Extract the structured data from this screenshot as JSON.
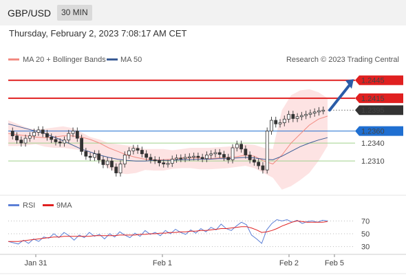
{
  "header": {
    "symbol": "GBP/USD",
    "timeframe": "30 MIN",
    "datetime": "Thursday, February 2, 2023 7:08:17 AM CET"
  },
  "legend": {
    "bb": "MA 20 + Bollinger Bands",
    "ma50": "MA 50",
    "credit": "Research © 2023 Trading Central"
  },
  "colors": {
    "bb": "#f28b82",
    "ma50": "#3a5b95",
    "resistance": "#e02020",
    "pivot": "#1f6fd1",
    "support": "#5a9e3a",
    "current": "#333333",
    "arrow": "#2a5ca8",
    "rsi": "#5b7fd6",
    "rsi_ma": "#e02020"
  },
  "chart_data": [
    {
      "type": "candlestick",
      "series": [
        {
          "name": "MA 20 + Bollinger Bands"
        },
        {
          "name": "MA 50"
        }
      ],
      "x_ticks": [
        "Jan 31",
        "Feb 1",
        "Feb 2",
        "Feb 5"
      ],
      "ylim": [
        1.2255,
        1.247
      ],
      "levels": [
        {
          "value": 1.2445,
          "label": "1.2445",
          "kind": "resistance"
        },
        {
          "value": 1.2415,
          "label": "1.2415",
          "kind": "resistance"
        },
        {
          "value": 1.2395,
          "label": "1.2395",
          "kind": "current"
        },
        {
          "value": 1.236,
          "label": "1.2360",
          "kind": "pivot"
        },
        {
          "value": 1.234,
          "label": "1.2340",
          "kind": "support"
        },
        {
          "value": 1.231,
          "label": "1.2310",
          "kind": "support"
        }
      ],
      "close_path": [
        1.236,
        1.2352,
        1.2345,
        1.234,
        1.2348,
        1.2352,
        1.2358,
        1.2362,
        1.2356,
        1.235,
        1.2346,
        1.2342,
        1.234,
        1.2345,
        1.2356,
        1.236,
        1.2348,
        1.2326,
        1.2318,
        1.2316,
        1.2322,
        1.2312,
        1.2304,
        1.231,
        1.23,
        1.229,
        1.2305,
        1.232,
        1.2327,
        1.2331,
        1.2328,
        1.2322,
        1.2316,
        1.2312,
        1.2311,
        1.2307,
        1.2305,
        1.2306,
        1.2313,
        1.2315,
        1.2314,
        1.2316,
        1.2317,
        1.2318,
        1.2316,
        1.2314,
        1.232,
        1.2322,
        1.2324,
        1.2321,
        1.2316,
        1.2312,
        1.2332,
        1.2338,
        1.233,
        1.232,
        1.2312,
        1.2308,
        1.2302,
        1.2295,
        1.236,
        1.2378,
        1.2372,
        1.2374,
        1.238,
        1.2388,
        1.2381,
        1.2384,
        1.2386,
        1.2388,
        1.239,
        1.2392,
        1.2394,
        1.2395
      ],
      "ma20_path": [
        1.2356,
        1.2354,
        1.2352,
        1.235,
        1.2349,
        1.235,
        1.2352,
        1.2352,
        1.235,
        1.2346,
        1.234,
        1.2332,
        1.2326,
        1.232,
        1.2316,
        1.2313,
        1.2312,
        1.2312,
        1.2313,
        1.2315,
        1.2315,
        1.2315,
        1.2314,
        1.2315,
        1.2316,
        1.2317,
        1.232,
        1.2318,
        1.231,
        1.2305,
        1.232,
        1.234,
        1.2355,
        1.237,
        1.238,
        1.2385
      ],
      "ma50_path": [
        1.2372,
        1.2368,
        1.2364,
        1.236,
        1.2356,
        1.235,
        1.2344,
        1.2337,
        1.233,
        1.2325,
        1.232,
        1.2316,
        1.2313,
        1.2311,
        1.231,
        1.231,
        1.2311,
        1.2311,
        1.2311,
        1.2312,
        1.2312,
        1.2313,
        1.2313,
        1.2314,
        1.2314,
        1.2315,
        1.2316,
        1.2315,
        1.2313,
        1.2312,
        1.2318,
        1.2326,
        1.2334,
        1.234,
        1.2345,
        1.2349
      ],
      "bb_upper": [
        1.2378,
        1.2372,
        1.2366,
        1.2362,
        1.2364,
        1.2366,
        1.2368,
        1.2365,
        1.2358,
        1.235,
        1.2346,
        1.234,
        1.2338,
        1.2336,
        1.2334,
        1.233,
        1.233,
        1.233,
        1.2328,
        1.233,
        1.2332,
        1.2332,
        1.2332,
        1.2333,
        1.2334,
        1.2335,
        1.2338,
        1.2337,
        1.2332,
        1.233,
        1.2395,
        1.242,
        1.2428,
        1.243,
        1.2425,
        1.2415
      ],
      "bb_lower": [
        1.2335,
        1.2335,
        1.2336,
        1.2338,
        1.2334,
        1.2332,
        1.2332,
        1.233,
        1.2328,
        1.232,
        1.231,
        1.2298,
        1.229,
        1.2288,
        1.229,
        1.2295,
        1.2294,
        1.2294,
        1.2297,
        1.2298,
        1.2298,
        1.2296,
        1.2296,
        1.2297,
        1.2298,
        1.23,
        1.2302,
        1.2298,
        1.229,
        1.2282,
        1.2262,
        1.2268,
        1.2278,
        1.229,
        1.231,
        1.2335
      ]
    },
    {
      "type": "line",
      "series": [
        {
          "name": "RSI",
          "values": [
            38,
            36,
            34,
            40,
            35,
            42,
            38,
            45,
            43,
            50,
            44,
            52,
            47,
            40,
            48,
            44,
            52,
            46,
            49,
            42,
            50,
            45,
            53,
            48,
            44,
            51,
            46,
            55,
            49,
            52,
            47,
            55,
            50,
            57,
            52,
            49,
            56,
            51,
            58,
            53,
            60,
            56,
            65,
            58,
            55,
            62,
            68,
            64,
            48,
            42,
            35,
            56,
            66,
            72,
            70,
            72,
            68,
            71,
            66,
            69,
            70,
            68,
            71,
            70
          ]
        },
        {
          "name": "9MA",
          "values": [
            38,
            38,
            38,
            39,
            40,
            41,
            42,
            43,
            44,
            45,
            45,
            46,
            46,
            46,
            46,
            46,
            46,
            47,
            47,
            47,
            47,
            47,
            48,
            48,
            48,
            48,
            49,
            49,
            50,
            50,
            51,
            51,
            52,
            52,
            53,
            53,
            54,
            54,
            55,
            55,
            56,
            57,
            58,
            58,
            59,
            60,
            61,
            61,
            59,
            56,
            52,
            53,
            55,
            58,
            62,
            65,
            68,
            70,
            69,
            68,
            68,
            68,
            68,
            69
          ]
        }
      ],
      "legend": [
        "RSI",
        "9MA"
      ],
      "yticks": [
        "70",
        "50",
        "30"
      ],
      "ylim": [
        20,
        80
      ]
    }
  ]
}
